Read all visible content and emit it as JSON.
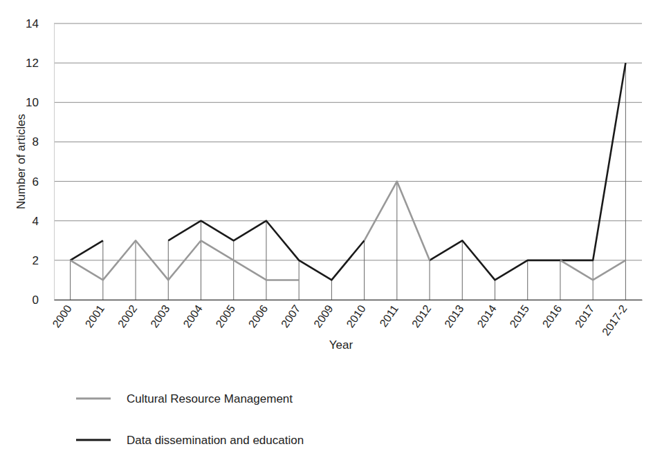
{
  "chart_data": {
    "type": "line",
    "xlabel": "Year",
    "ylabel": "Number of articles",
    "categories": [
      "2000",
      "2001",
      "2002",
      "2003",
      "2004",
      "2005",
      "2006",
      "2007",
      "2009",
      "2010",
      "2011",
      "2012",
      "2013",
      "2014",
      "2015",
      "2016",
      "2017",
      "2017-2"
    ],
    "series": [
      {
        "name": "Cultural Resource Management",
        "color": "#999999",
        "values": [
          2,
          1,
          3,
          1,
          3,
          2,
          1,
          1,
          null,
          3,
          6,
          2,
          null,
          null,
          null,
          2,
          1,
          2
        ]
      },
      {
        "name": "Data dissemination and education",
        "color": "#1a1a1a",
        "values": [
          2,
          3,
          null,
          3,
          4,
          3,
          4,
          2,
          1,
          3,
          null,
          2,
          3,
          1,
          2,
          2,
          2,
          12
        ]
      }
    ],
    "ylim": [
      0,
      14
    ],
    "yticks": [
      0,
      2,
      4,
      6,
      8,
      10,
      12,
      14
    ],
    "grid": true,
    "legend": "bottom-left"
  }
}
